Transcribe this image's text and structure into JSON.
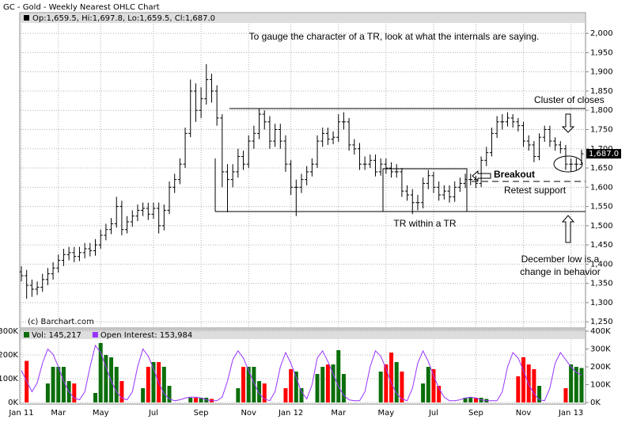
{
  "chart_data": [
    {
      "type": "ohlc",
      "title": "GC - Gold - Weekly Nearest OHLC Chart",
      "ohlc_label": "Op:1,659.5, Hi:1,697.8, Lo:1,659.5, Cl:1,687.0",
      "last_label": "1,687.0",
      "credit": "(c) Barchart.com",
      "color": "#000000",
      "grid": true,
      "annotations": [
        "To gauge the character of a TR, look at what the internals are saying.",
        "Cluster of closes",
        "Breakout",
        "Retest support",
        "TR within a TR",
        "December low is a",
        "change in behavior"
      ],
      "ylim": [
        1234,
        2025
      ],
      "yticks": [
        {
          "value": 1250,
          "label": "1,250"
        },
        {
          "value": 1300,
          "label": "1,300"
        },
        {
          "value": 1350,
          "label": "1,350"
        },
        {
          "value": 1400,
          "label": "1,400"
        },
        {
          "value": 1450,
          "label": "1,450"
        },
        {
          "value": 1500,
          "label": "1,500"
        },
        {
          "value": 1550,
          "label": "1,550"
        },
        {
          "value": 1600,
          "label": "1,600"
        },
        {
          "value": 1650,
          "label": "1,650"
        },
        {
          "value": 1700,
          "label": "1,700"
        },
        {
          "value": 1750,
          "label": "1,750"
        },
        {
          "value": 1800,
          "label": "1,800"
        },
        {
          "value": 1850,
          "label": "1,850"
        },
        {
          "value": 1900,
          "label": "1,900"
        },
        {
          "value": 1950,
          "label": "1,950"
        },
        {
          "value": 2000,
          "label": "2,000"
        }
      ],
      "open": [
        1380,
        1370,
        1345,
        1335,
        1340,
        1360,
        1375,
        1390,
        1410,
        1425,
        1430,
        1420,
        1430,
        1440,
        1435,
        1450,
        1475,
        1490,
        1505,
        1550,
        1490,
        1510,
        1525,
        1540,
        1545,
        1530,
        1545,
        1500,
        1540,
        1600,
        1620,
        1660,
        1740,
        1850,
        1800,
        1830,
        1880,
        1850,
        1780,
        1640,
        1620,
        1640,
        1680,
        1660,
        1720,
        1740,
        1790,
        1770,
        1720,
        1750,
        1720,
        1660,
        1600,
        1600,
        1620,
        1640,
        1660,
        1720,
        1740,
        1725,
        1730,
        1770,
        1770,
        1710,
        1700,
        1660,
        1660,
        1670,
        1640,
        1660,
        1650,
        1640,
        1640,
        1590,
        1580,
        1560,
        1560,
        1610,
        1630,
        1600,
        1580,
        1590,
        1575,
        1600,
        1610,
        1620,
        1620,
        1610,
        1670,
        1690,
        1740,
        1770,
        1770,
        1780,
        1770,
        1760,
        1720,
        1710,
        1680,
        1730,
        1750,
        1720,
        1710,
        1700,
        1660,
        1660,
        1659.5
      ],
      "high": [
        1395,
        1385,
        1360,
        1355,
        1375,
        1390,
        1405,
        1425,
        1440,
        1445,
        1445,
        1445,
        1455,
        1455,
        1465,
        1490,
        1505,
        1520,
        1575,
        1565,
        1525,
        1540,
        1555,
        1560,
        1560,
        1560,
        1560,
        1555,
        1615,
        1635,
        1675,
        1755,
        1880,
        1870,
        1860,
        1920,
        1895,
        1865,
        1790,
        1660,
        1660,
        1700,
        1695,
        1735,
        1760,
        1805,
        1800,
        1785,
        1765,
        1765,
        1735,
        1670,
        1620,
        1635,
        1655,
        1675,
        1735,
        1755,
        1755,
        1745,
        1790,
        1795,
        1780,
        1725,
        1715,
        1680,
        1685,
        1685,
        1675,
        1675,
        1665,
        1660,
        1650,
        1605,
        1595,
        1580,
        1625,
        1645,
        1640,
        1615,
        1605,
        1605,
        1615,
        1625,
        1635,
        1635,
        1630,
        1680,
        1705,
        1755,
        1785,
        1790,
        1795,
        1790,
        1780,
        1770,
        1735,
        1720,
        1740,
        1760,
        1760,
        1730,
        1720,
        1710,
        1675,
        1675,
        1697.8
      ],
      "low": [
        1355,
        1310,
        1315,
        1320,
        1328,
        1345,
        1360,
        1378,
        1395,
        1410,
        1405,
        1408,
        1415,
        1420,
        1422,
        1440,
        1462,
        1478,
        1495,
        1475,
        1480,
        1497,
        1512,
        1525,
        1515,
        1518,
        1480,
        1488,
        1530,
        1585,
        1608,
        1650,
        1730,
        1770,
        1780,
        1815,
        1820,
        1760,
        1600,
        1535,
        1600,
        1625,
        1645,
        1650,
        1700,
        1725,
        1750,
        1700,
        1705,
        1700,
        1640,
        1580,
        1525,
        1585,
        1605,
        1628,
        1650,
        1705,
        1710,
        1712,
        1718,
        1750,
        1695,
        1685,
        1645,
        1645,
        1650,
        1628,
        1630,
        1635,
        1625,
        1625,
        1575,
        1565,
        1530,
        1540,
        1545,
        1595,
        1585,
        1565,
        1568,
        1560,
        1562,
        1588,
        1598,
        1605,
        1598,
        1600,
        1655,
        1680,
        1728,
        1750,
        1758,
        1755,
        1745,
        1705,
        1695,
        1665,
        1670,
        1718,
        1705,
        1695,
        1688,
        1645,
        1640,
        1645,
        1659.5
      ],
      "close": [
        1370,
        1345,
        1335,
        1340,
        1360,
        1375,
        1390,
        1410,
        1425,
        1430,
        1420,
        1430,
        1440,
        1435,
        1450,
        1475,
        1490,
        1505,
        1550,
        1490,
        1510,
        1525,
        1540,
        1545,
        1530,
        1545,
        1500,
        1540,
        1600,
        1620,
        1660,
        1740,
        1850,
        1800,
        1830,
        1880,
        1850,
        1780,
        1640,
        1620,
        1640,
        1680,
        1660,
        1720,
        1740,
        1790,
        1770,
        1720,
        1750,
        1720,
        1660,
        1600,
        1600,
        1620,
        1640,
        1660,
        1720,
        1740,
        1725,
        1730,
        1770,
        1770,
        1710,
        1700,
        1660,
        1660,
        1670,
        1640,
        1660,
        1650,
        1640,
        1640,
        1590,
        1580,
        1560,
        1560,
        1610,
        1630,
        1600,
        1580,
        1590,
        1575,
        1600,
        1610,
        1620,
        1620,
        1610,
        1670,
        1690,
        1740,
        1770,
        1770,
        1780,
        1770,
        1760,
        1720,
        1710,
        1680,
        1730,
        1750,
        1720,
        1710,
        1700,
        1660,
        1660,
        1660,
        1687
      ]
    },
    {
      "type": "bar",
      "up_color": "#0b6e0b",
      "down_color": "#ff0000",
      "grid": true,
      "categories": [
        "Jan 11",
        null,
        null,
        null,
        null,
        null,
        null,
        "Mar",
        null,
        null,
        null,
        null,
        null,
        null,
        null,
        "May",
        null,
        null,
        null,
        null,
        null,
        null,
        null,
        null,
        null,
        "Jul",
        null,
        null,
        null,
        null,
        null,
        null,
        null,
        null,
        "Sep",
        null,
        null,
        null,
        null,
        null,
        null,
        null,
        null,
        "Nov",
        null,
        null,
        null,
        null,
        null,
        null,
        null,
        "Jan 12",
        null,
        null,
        null,
        null,
        null,
        null,
        null,
        null,
        "Mar",
        null,
        null,
        null,
        null,
        null,
        null,
        null,
        null,
        "May",
        null,
        null,
        null,
        null,
        null,
        null,
        null,
        null,
        "Jul",
        null,
        null,
        null,
        null,
        null,
        null,
        null,
        "Sep",
        null,
        null,
        null,
        null,
        null,
        null,
        null,
        null,
        "Nov",
        null,
        null,
        null,
        null,
        null,
        null,
        null,
        null,
        "Jan 13",
        null,
        null
      ],
      "ylim": [
        0,
        300000
      ],
      "yticks": [
        {
          "value": 0,
          "label": "0K"
        },
        {
          "value": 100000,
          "label": "100K"
        },
        {
          "value": 200000,
          "label": "200K"
        },
        {
          "value": 300000,
          "label": "300K"
        }
      ],
      "y2lim": [
        0,
        400000
      ],
      "y2ticks": [
        {
          "value": 0,
          "label": "0K"
        },
        {
          "value": 100000,
          "label": "100K"
        },
        {
          "value": 200000,
          "label": "200K"
        },
        {
          "value": 300000,
          "label": "300K"
        },
        {
          "value": 400000,
          "label": "400K"
        }
      ],
      "series": [
        {
          "name": "Vol: 145,217",
          "color": "#0b6e0b",
          "values": [
            0,
            175000,
            0,
            0,
            0,
            80000,
            150000,
            150000,
            150000,
            90000,
            80000,
            0,
            0,
            0,
            40000,
            250000,
            200000,
            190000,
            150000,
            90000,
            0,
            0,
            0,
            60000,
            150000,
            170000,
            170000,
            150000,
            70000,
            0,
            0,
            0,
            20000,
            20000,
            20000,
            20000,
            15000,
            0,
            0,
            0,
            0,
            60000,
            150000,
            150000,
            150000,
            90000,
            80000,
            0,
            0,
            0,
            60000,
            140000,
            130000,
            60000,
            0,
            0,
            120000,
            150000,
            160000,
            160000,
            220000,
            120000,
            0,
            0,
            0,
            0,
            0,
            0,
            130000,
            160000,
            210000,
            170000,
            130000,
            0,
            0,
            0,
            80000,
            150000,
            140000,
            70000,
            0,
            0,
            0,
            0,
            20000,
            20000,
            20000,
            20000,
            15000,
            0,
            0,
            0,
            0,
            0,
            110000,
            190000,
            160000,
            140000,
            70000,
            0,
            0,
            0,
            0,
            60000,
            160000,
            150000,
            145217
          ]
        },
        {
          "name": "Open Interest: 153,984",
          "color": "#9933ff",
          "axis": "y2",
          "values": [
            180000,
            120000,
            60000,
            110000,
            220000,
            300000,
            270000,
            200000,
            120000,
            60000,
            25000,
            15000,
            60000,
            200000,
            320000,
            280000,
            200000,
            120000,
            60000,
            25000,
            15000,
            60000,
            200000,
            300000,
            260000,
            190000,
            110000,
            50000,
            20000,
            10000,
            15000,
            25000,
            30000,
            30000,
            25000,
            15000,
            10000,
            10000,
            30000,
            120000,
            240000,
            290000,
            250000,
            180000,
            110000,
            50000,
            20000,
            10000,
            60000,
            200000,
            280000,
            220000,
            140000,
            60000,
            20000,
            100000,
            250000,
            290000,
            230000,
            160000,
            90000,
            40000,
            15000,
            10000,
            10000,
            60000,
            200000,
            290000,
            260000,
            190000,
            110000,
            50000,
            20000,
            10000,
            80000,
            220000,
            290000,
            230000,
            150000,
            80000,
            30000,
            10000,
            10000,
            15000,
            25000,
            30000,
            25000,
            15000,
            10000,
            10000,
            10000,
            60000,
            200000,
            280000,
            250000,
            180000,
            100000,
            50000,
            15000,
            10000,
            80000,
            220000,
            280000,
            240000,
            200000,
            170000,
            153984
          ]
        }
      ]
    }
  ]
}
